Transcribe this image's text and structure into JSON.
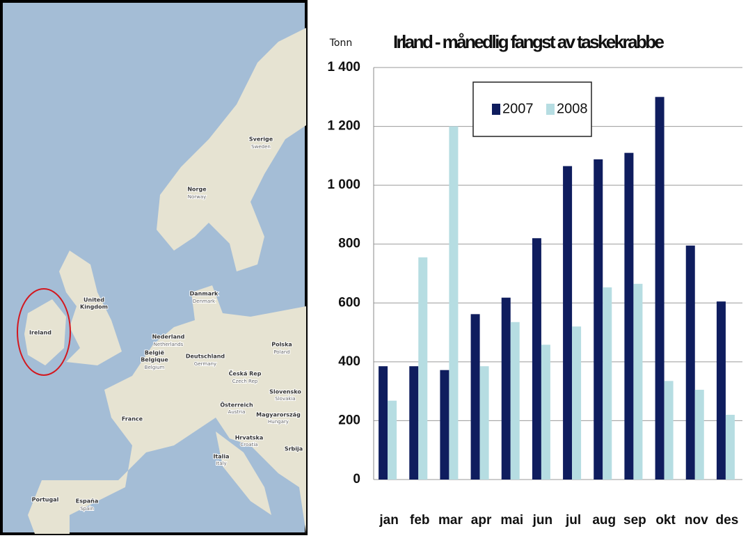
{
  "map": {
    "labels": [
      "Sverige",
      "Sweden",
      "Norge",
      "Norway",
      "United",
      "Kingdom",
      "Ireland",
      "Danmark",
      "Denmark",
      "Nederland",
      "Netherlands",
      "België",
      "Belgique",
      "Belgium",
      "Deutschland",
      "Germany",
      "Polska",
      "Poland",
      "Česká Rep",
      "Czech Rep",
      "Slovensko",
      "Slovakia",
      "Österreich",
      "Austria",
      "Magyarország",
      "Hungary",
      "France",
      "Hrvatska",
      "Croatia",
      "Italia",
      "Italy",
      "Srbija",
      "Portugal",
      "España",
      "Spain"
    ]
  },
  "chart_data": {
    "type": "bar",
    "title": "Irland - månedlig fangst av taskekrabbe",
    "y_label": "Tonn",
    "categories": [
      "jan",
      "feb",
      "mar",
      "apr",
      "mai",
      "jun",
      "jul",
      "aug",
      "sep",
      "okt",
      "nov",
      "des"
    ],
    "series": [
      {
        "name": "2007",
        "color": "#0f1d5e",
        "values": [
          385,
          385,
          372,
          562,
          618,
          820,
          1065,
          1088,
          1110,
          1300,
          795,
          605
        ]
      },
      {
        "name": "2008",
        "color": "#b6dde2",
        "values": [
          268,
          755,
          1200,
          385,
          535,
          458,
          520,
          653,
          665,
          335,
          305,
          220
        ]
      }
    ],
    "ylim": [
      0,
      1400
    ],
    "yticks": [
      0,
      200,
      400,
      600,
      800,
      {
        "value": 1000,
        "label": "1 000"
      },
      {
        "value": 1200,
        "label": "1 200"
      },
      {
        "value": 1400,
        "label": "1 400"
      }
    ],
    "grid": true,
    "legend": "top"
  }
}
